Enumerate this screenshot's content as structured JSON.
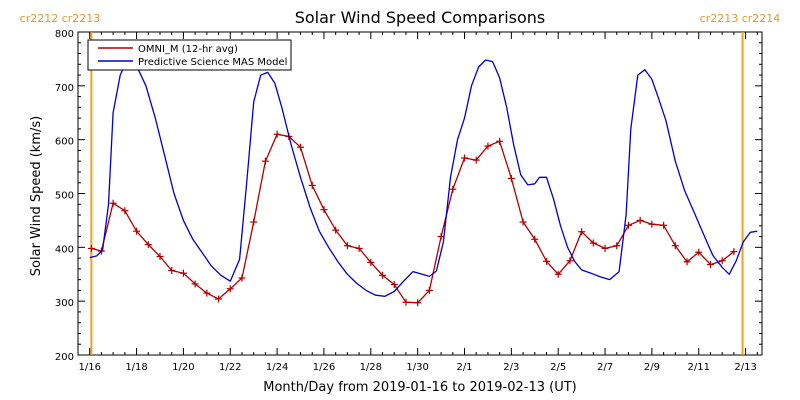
{
  "chart_data": {
    "type": "line",
    "title": "Solar Wind Speed Comparisons",
    "xlabel": "Month/Day from 2019-01-16 to 2019-02-13 (UT)",
    "ylabel": "Solar Wind Speed (km/s)",
    "x_tick_labels": [
      "1/16",
      "1/18",
      "1/20",
      "1/22",
      "1/24",
      "1/26",
      "1/28",
      "1/30",
      "2/1",
      "2/3",
      "2/5",
      "2/7",
      "2/9",
      "2/11",
      "2/13"
    ],
    "x_ticks_day": [
      0,
      2,
      4,
      6,
      8,
      10,
      12,
      14,
      16,
      18,
      20,
      22,
      24,
      26,
      28
    ],
    "xlim_day": [
      -0.5,
      28.7
    ],
    "ylim": [
      200,
      800
    ],
    "y_ticks": [
      200,
      300,
      400,
      500,
      600,
      700,
      800
    ],
    "legend_position": "top-left",
    "carrington_boundaries": [
      {
        "day": 0.07,
        "labels": [
          "cr2212",
          "cr2213"
        ],
        "side": "left"
      },
      {
        "day": 27.87,
        "labels": [
          "cr2213",
          "cr2214"
        ],
        "side": "right"
      }
    ],
    "colors": {
      "omni": "#b00000",
      "model": "#0000cc",
      "boundary": "#f5a020",
      "boundary_text": "#e69a2e"
    },
    "series": [
      {
        "name": "OMNI_M (12-hr avg)",
        "color": "#b00000",
        "marker": "plus",
        "points": [
          [
            0.07,
            398
          ],
          [
            0.5,
            393
          ],
          [
            1.0,
            482
          ],
          [
            1.5,
            468
          ],
          [
            2.0,
            430
          ],
          [
            2.5,
            405
          ],
          [
            3.0,
            383
          ],
          [
            3.5,
            357
          ],
          [
            4.0,
            352
          ],
          [
            4.5,
            332
          ],
          [
            5.0,
            315
          ],
          [
            5.5,
            304
          ],
          [
            6.0,
            323
          ],
          [
            6.5,
            343
          ],
          [
            7.0,
            447
          ],
          [
            7.5,
            560
          ],
          [
            8.0,
            610
          ],
          [
            8.5,
            606
          ],
          [
            9.0,
            586
          ],
          [
            9.5,
            515
          ],
          [
            10.0,
            470
          ],
          [
            10.5,
            432
          ],
          [
            11.0,
            403
          ],
          [
            11.5,
            398
          ],
          [
            12.0,
            372
          ],
          [
            12.5,
            348
          ],
          [
            13.0,
            331
          ],
          [
            13.5,
            298
          ],
          [
            14.0,
            297
          ],
          [
            14.5,
            320
          ],
          [
            15.0,
            420
          ],
          [
            15.5,
            508
          ],
          [
            16.0,
            566
          ],
          [
            16.5,
            562
          ],
          [
            17.0,
            588
          ],
          [
            17.5,
            597
          ],
          [
            18.0,
            528
          ],
          [
            18.5,
            447
          ],
          [
            19.0,
            415
          ],
          [
            19.5,
            374
          ],
          [
            20.0,
            350
          ],
          [
            20.5,
            375
          ],
          [
            21.0,
            429
          ],
          [
            21.5,
            408
          ],
          [
            22.0,
            398
          ],
          [
            22.5,
            403
          ],
          [
            23.0,
            441
          ],
          [
            23.5,
            450
          ],
          [
            24.0,
            443
          ],
          [
            24.5,
            441
          ],
          [
            25.0,
            403
          ],
          [
            25.5,
            373
          ],
          [
            26.0,
            391
          ],
          [
            26.5,
            368
          ],
          [
            27.0,
            375
          ],
          [
            27.5,
            392
          ]
        ]
      },
      {
        "name": "Predictive Science MAS Model",
        "color": "#0000cc",
        "marker": "none",
        "points": [
          [
            0.0,
            381
          ],
          [
            0.3,
            384
          ],
          [
            0.55,
            395
          ],
          [
            0.8,
            480
          ],
          [
            1.0,
            650
          ],
          [
            1.3,
            720
          ],
          [
            1.5,
            738
          ],
          [
            1.8,
            740
          ],
          [
            2.1,
            728
          ],
          [
            2.4,
            700
          ],
          [
            2.8,
            640
          ],
          [
            3.2,
            570
          ],
          [
            3.6,
            500
          ],
          [
            4.0,
            450
          ],
          [
            4.4,
            415
          ],
          [
            4.8,
            390
          ],
          [
            5.2,
            365
          ],
          [
            5.6,
            348
          ],
          [
            6.0,
            337
          ],
          [
            6.4,
            378
          ],
          [
            6.7,
            520
          ],
          [
            7.0,
            670
          ],
          [
            7.3,
            720
          ],
          [
            7.6,
            725
          ],
          [
            7.9,
            705
          ],
          [
            8.2,
            660
          ],
          [
            8.6,
            590
          ],
          [
            9.0,
            530
          ],
          [
            9.4,
            475
          ],
          [
            9.8,
            430
          ],
          [
            10.2,
            400
          ],
          [
            10.6,
            373
          ],
          [
            11.0,
            350
          ],
          [
            11.4,
            333
          ],
          [
            11.8,
            320
          ],
          [
            12.2,
            311
          ],
          [
            12.6,
            309
          ],
          [
            13.0,
            318
          ],
          [
            13.4,
            337
          ],
          [
            13.8,
            355
          ],
          [
            14.2,
            350
          ],
          [
            14.5,
            346
          ],
          [
            14.8,
            356
          ],
          [
            15.1,
            410
          ],
          [
            15.4,
            530
          ],
          [
            15.7,
            600
          ],
          [
            16.0,
            640
          ],
          [
            16.3,
            700
          ],
          [
            16.6,
            735
          ],
          [
            16.9,
            748
          ],
          [
            17.2,
            745
          ],
          [
            17.5,
            715
          ],
          [
            17.8,
            660
          ],
          [
            18.1,
            590
          ],
          [
            18.4,
            535
          ],
          [
            18.7,
            516
          ],
          [
            19.0,
            518
          ],
          [
            19.2,
            530
          ],
          [
            19.5,
            530
          ],
          [
            19.8,
            490
          ],
          [
            20.1,
            440
          ],
          [
            20.4,
            400
          ],
          [
            20.7,
            374
          ],
          [
            21.0,
            358
          ],
          [
            21.4,
            352
          ],
          [
            21.8,
            345
          ],
          [
            22.2,
            340
          ],
          [
            22.6,
            355
          ],
          [
            22.9,
            460
          ],
          [
            23.1,
            620
          ],
          [
            23.4,
            720
          ],
          [
            23.7,
            730
          ],
          [
            24.0,
            712
          ],
          [
            24.3,
            675
          ],
          [
            24.6,
            635
          ],
          [
            25.0,
            560
          ],
          [
            25.4,
            505
          ],
          [
            25.8,
            465
          ],
          [
            26.2,
            425
          ],
          [
            26.6,
            385
          ],
          [
            27.0,
            363
          ],
          [
            27.3,
            350
          ],
          [
            27.6,
            375
          ],
          [
            27.9,
            410
          ],
          [
            28.2,
            428
          ],
          [
            28.5,
            430
          ]
        ]
      }
    ]
  }
}
